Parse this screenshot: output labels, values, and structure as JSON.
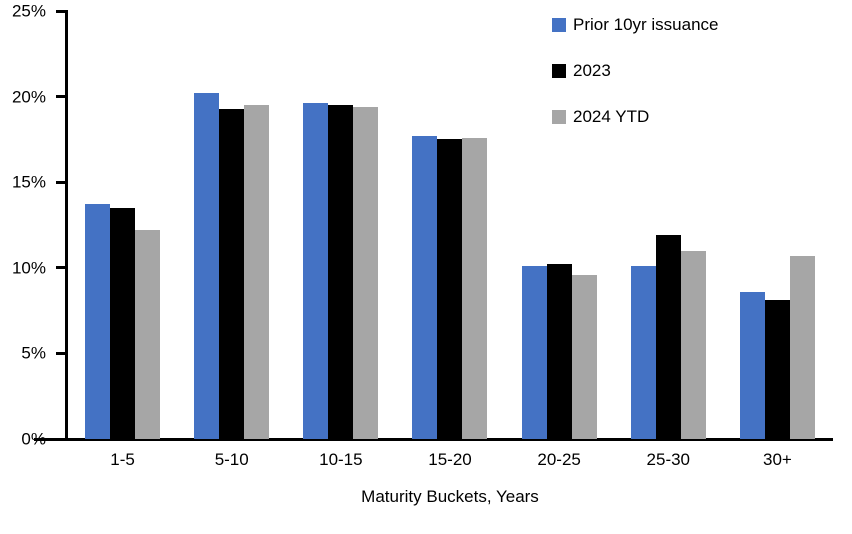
{
  "chart_data": {
    "type": "bar",
    "title": "",
    "xlabel": "Maturity Buckets, Years",
    "ylabel": "",
    "ylim": [
      0,
      25
    ],
    "yticks": [
      0,
      5,
      10,
      15,
      20,
      25
    ],
    "ytick_labels": [
      "0%",
      "5%",
      "10%",
      "15%",
      "20%",
      "25%"
    ],
    "grid": false,
    "legend_position": "top-right",
    "categories": [
      "1-5",
      "5-10",
      "10-15",
      "15-20",
      "20-25",
      "25-30",
      "30+"
    ],
    "series": [
      {
        "name": "Prior 10yr issuance",
        "color": "#4472C4",
        "values": [
          13.7,
          20.2,
          19.6,
          17.7,
          10.1,
          10.1,
          8.6
        ]
      },
      {
        "name": "2023",
        "color": "#000000",
        "values": [
          13.5,
          19.3,
          19.5,
          17.5,
          10.2,
          11.9,
          8.1
        ]
      },
      {
        "name": "2024 YTD",
        "color": "#A6A6A6",
        "values": [
          12.2,
          19.5,
          19.4,
          17.6,
          9.6,
          11.0,
          10.7
        ]
      }
    ],
    "axis_color": "#000000",
    "background_color": "#FFFFFF"
  }
}
